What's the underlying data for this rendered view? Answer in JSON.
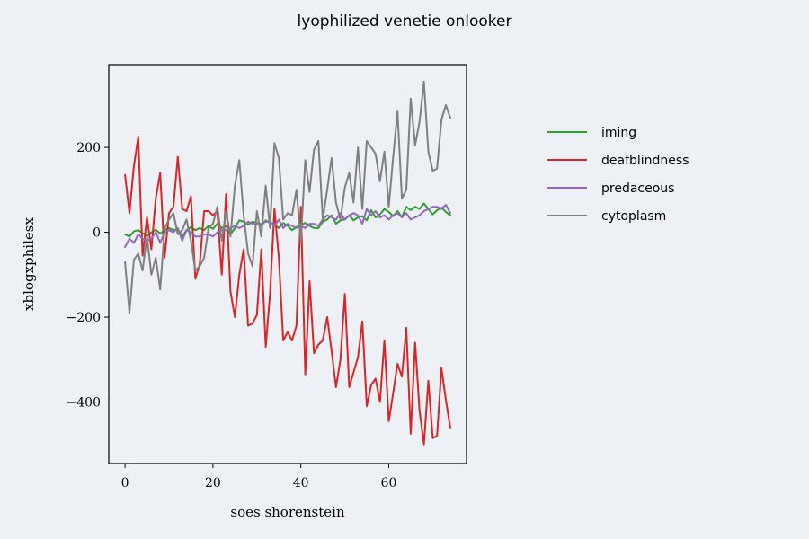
{
  "chart_data": {
    "type": "line",
    "title": "lyophilized venetie onlooker",
    "xlabel": "soes shorenstein",
    "ylabel": "xblogxphilesx",
    "xlim": [
      -3.7,
      77.7
    ],
    "ylim": [
      -545,
      395
    ],
    "xticks": [
      0,
      20,
      40,
      60
    ],
    "yticks": [
      -400,
      -200,
      0,
      200
    ],
    "legend_position": "right",
    "grid": false,
    "x": [
      0,
      1,
      2,
      3,
      4,
      5,
      6,
      7,
      8,
      9,
      10,
      11,
      12,
      13,
      14,
      15,
      16,
      17,
      18,
      19,
      20,
      21,
      22,
      23,
      24,
      25,
      26,
      27,
      28,
      29,
      30,
      31,
      32,
      33,
      34,
      35,
      36,
      37,
      38,
      39,
      40,
      41,
      42,
      43,
      44,
      45,
      46,
      47,
      48,
      49,
      50,
      51,
      52,
      53,
      54,
      55,
      56,
      57,
      58,
      59,
      60,
      61,
      62,
      63,
      64,
      65,
      66,
      67,
      68,
      69,
      70,
      71,
      72,
      73,
      74
    ],
    "series": [
      {
        "name": "iming",
        "color": "#2ca02c",
        "values": [
          -5,
          -10,
          2,
          5,
          -2,
          -8,
          0,
          6,
          -3,
          5,
          10,
          5,
          8,
          -10,
          5,
          12,
          5,
          10,
          5,
          15,
          8,
          20,
          10,
          15,
          -5,
          10,
          28,
          25,
          18,
          25,
          22,
          15,
          28,
          22,
          18,
          10,
          22,
          15,
          5,
          12,
          18,
          22,
          15,
          10,
          10,
          25,
          30,
          40,
          20,
          28,
          30,
          40,
          28,
          35,
          38,
          28,
          52,
          35,
          42,
          55,
          48,
          38,
          50,
          35,
          60,
          52,
          60,
          55,
          68,
          55,
          42,
          52,
          58,
          48,
          40
        ]
      },
      {
        "name": "deafblindness",
        "color": "#d62728",
        "values": [
          135,
          45,
          155,
          225,
          -55,
          35,
          -40,
          80,
          140,
          -60,
          45,
          60,
          178,
          55,
          50,
          85,
          -110,
          -75,
          50,
          50,
          40,
          50,
          -100,
          90,
          -140,
          -200,
          -100,
          -40,
          -220,
          -215,
          -195,
          -40,
          -270,
          -145,
          55,
          -60,
          -255,
          -235,
          -255,
          -220,
          60,
          -335,
          -115,
          -285,
          -265,
          -255,
          -200,
          -280,
          -365,
          -300,
          -145,
          -365,
          -330,
          -295,
          -210,
          -410,
          -360,
          -345,
          -400,
          -255,
          -445,
          -380,
          -310,
          -340,
          -225,
          -475,
          -260,
          -420,
          -500,
          -350,
          -485,
          -480,
          -320,
          -395,
          -460
        ]
      },
      {
        "name": "predaceous",
        "color": "#9467bd",
        "values": [
          -35,
          -15,
          -25,
          -5,
          -15,
          -20,
          -15,
          0,
          -25,
          0,
          5,
          0,
          10,
          -20,
          5,
          0,
          -10,
          -10,
          -5,
          -5,
          -10,
          0,
          5,
          5,
          10,
          15,
          10,
          15,
          25,
          20,
          20,
          20,
          25,
          25,
          15,
          30,
          10,
          20,
          15,
          10,
          15,
          10,
          20,
          20,
          15,
          30,
          40,
          35,
          30,
          45,
          30,
          40,
          45,
          40,
          20,
          55,
          40,
          50,
          35,
          40,
          30,
          40,
          45,
          35,
          45,
          30,
          35,
          40,
          50,
          55,
          60,
          60,
          55,
          65,
          45
        ]
      },
      {
        "name": "cytoplasm",
        "color": "#7f7f7f",
        "values": [
          -70,
          -190,
          -65,
          -50,
          -90,
          -10,
          -100,
          -60,
          -135,
          10,
          30,
          45,
          -5,
          5,
          30,
          -20,
          -90,
          -80,
          -60,
          10,
          20,
          60,
          -20,
          50,
          -10,
          110,
          170,
          40,
          -50,
          -80,
          50,
          -10,
          110,
          10,
          210,
          175,
          30,
          45,
          40,
          100,
          -20,
          170,
          95,
          195,
          215,
          30,
          100,
          175,
          70,
          30,
          105,
          140,
          70,
          200,
          55,
          215,
          200,
          185,
          120,
          190,
          60,
          175,
          285,
          80,
          100,
          315,
          205,
          260,
          355,
          190,
          145,
          150,
          265,
          300,
          270
        ]
      }
    ]
  }
}
